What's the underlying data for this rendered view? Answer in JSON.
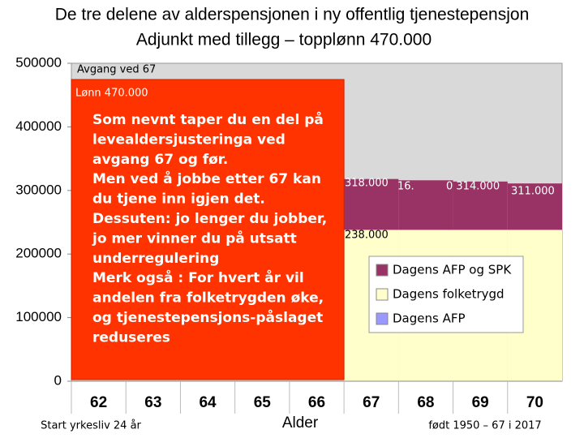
{
  "chart_data": {
    "type": "bar",
    "title": "De tre delene av alderspensjonen i ny offentlig tjenestepensjon",
    "subtitle": "Adjunkt med tillegg – topplønn 470.000",
    "categories": [
      "62",
      "63",
      "64",
      "65",
      "66",
      "67",
      "68",
      "69",
      "70"
    ],
    "series": [
      {
        "name": "Dagens AFP",
        "color": "#9999ff",
        "values": [
          null,
          null,
          null,
          null,
          null,
          null,
          null,
          null,
          null
        ]
      },
      {
        "name": "Dagens folketrygd",
        "color": "#ffffcc",
        "values": [
          null,
          null,
          null,
          null,
          null,
          238000,
          238000,
          238000,
          238000
        ]
      },
      {
        "name": "Dagens AFP og SPK",
        "color": "#993366",
        "values": [
          null,
          null,
          null,
          null,
          null,
          80000,
          78000,
          76000,
          73000
        ]
      }
    ],
    "ylim": [
      0,
      500000
    ],
    "yticks": [
      0,
      100000,
      200000,
      300000,
      400000,
      500000
    ],
    "annotations": [
      "Avgang ved 67",
      "Lønn 470.000",
      "318.000",
      "16.",
      "0 314.000",
      "311.000",
      "238.000"
    ],
    "note_lines": [
      "Som nevnt taper du en del på",
      "levealdersjusteringa ved",
      "avgang 67 og før.",
      "Men ved å jobbe etter 67 kan",
      "du tjene inn igjen det.",
      "Dessuten: jo lenger du jobber,",
      "jo mer vinner du på utsatt",
      "underregulering",
      "Merk også : For hvert år vil",
      "andelen fra folketrygden øke,",
      "og tjenestepensjons-påslaget",
      "reduseres"
    ],
    "footer_left": "Start yrkesliv 24 år",
    "xlabel": "Alder",
    "footer_right": "født 1950 – 67 i 2017"
  }
}
